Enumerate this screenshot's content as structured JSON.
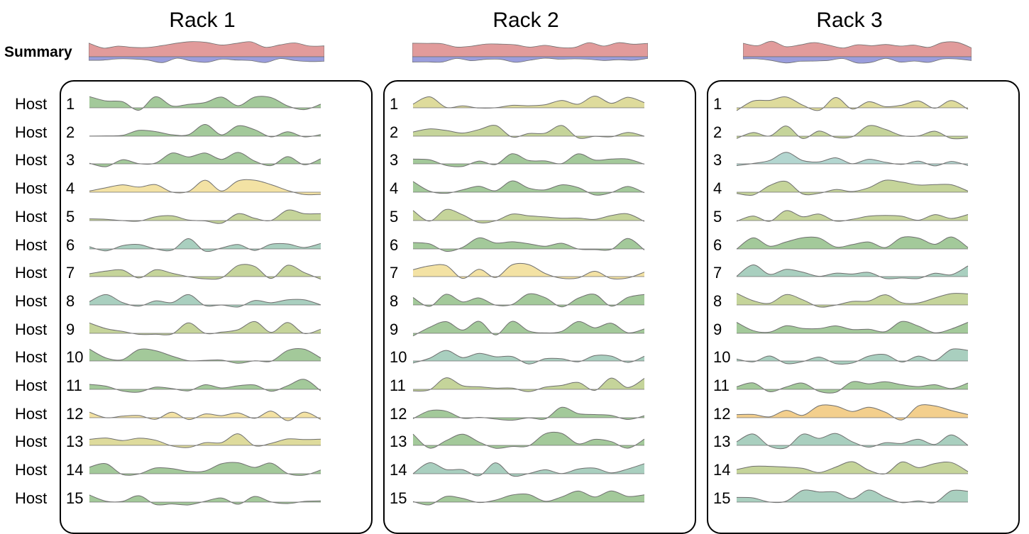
{
  "summary_label": "Summary",
  "host_label": "Host",
  "racks": [
    {
      "title": "Rack 1"
    },
    {
      "title": "Rack 2"
    },
    {
      "title": "Rack 3"
    }
  ],
  "host_numbers": [
    "1",
    "2",
    "3",
    "4",
    "5",
    "6",
    "7",
    "8",
    "9",
    "10",
    "11",
    "12",
    "13",
    "14",
    "15"
  ],
  "colors": {
    "summary_positive": "#e19b9b",
    "summary_negative": "#9a9ddc",
    "green": "#a3c99a",
    "sage": "#c5d49a",
    "khaki": "#dedb9c",
    "yellow": "#f3e2a4",
    "teal": "#a9cfbf",
    "aqua": "#b3d6d0",
    "orange": "#f3cf8d",
    "stroke": "#6f6f6f"
  },
  "host_colors": [
    [
      "green",
      "green",
      "green",
      "yellow",
      "sage",
      "teal",
      "sage",
      "teal",
      "sage",
      "green",
      "green",
      "yellow",
      "khaki",
      "green",
      "green"
    ],
    [
      "khaki",
      "sage",
      "green",
      "green",
      "sage",
      "green",
      "yellow",
      "green",
      "green",
      "teal",
      "sage",
      "green",
      "green",
      "teal",
      "green"
    ],
    [
      "khaki",
      "sage",
      "aqua",
      "sage",
      "sage",
      "green",
      "teal",
      "sage",
      "green",
      "teal",
      "green",
      "orange",
      "teal",
      "sage",
      "teal"
    ]
  ]
}
